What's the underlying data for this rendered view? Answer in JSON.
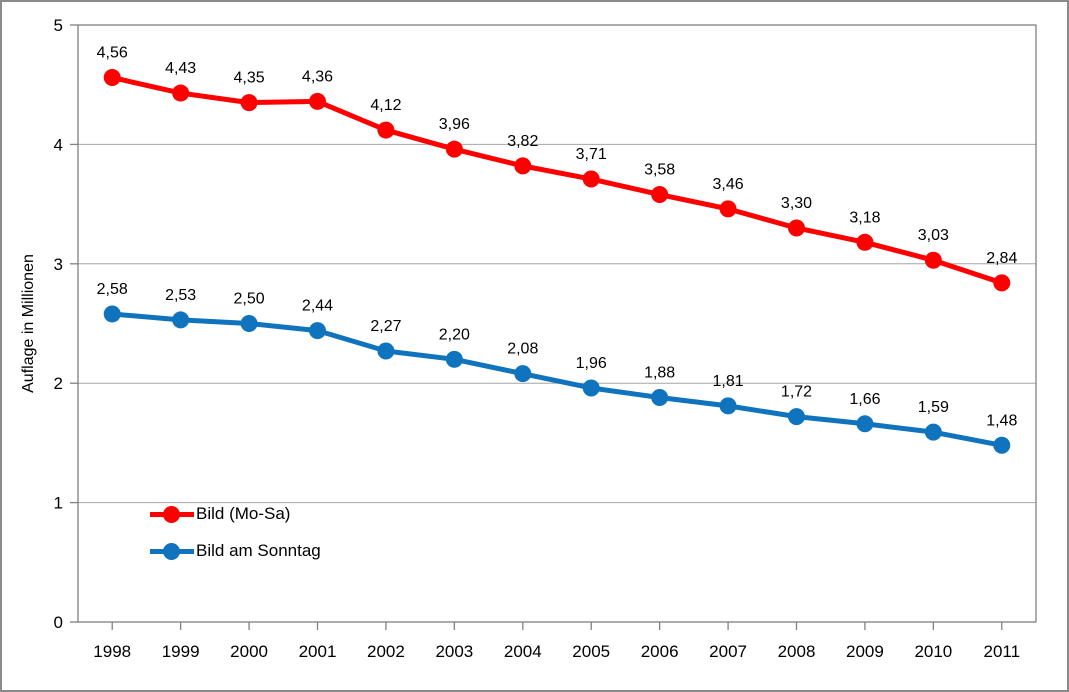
{
  "chart_data": {
    "type": "line",
    "title": "",
    "xlabel": "",
    "ylabel": "Auflage in Millionen",
    "ylim": [
      0,
      5
    ],
    "yticks": [
      "0",
      "1",
      "2",
      "3",
      "4",
      "5"
    ],
    "grid": "horizontal",
    "legend_position": "inside-bottom-left",
    "categories": [
      "1998",
      "1999",
      "2000",
      "2001",
      "2002",
      "2003",
      "2004",
      "2005",
      "2006",
      "2007",
      "2008",
      "2009",
      "2010",
      "2011"
    ],
    "series": [
      {
        "name": "Bild (Mo-Sa)",
        "color": "#FE0000",
        "values": [
          4.56,
          4.43,
          4.35,
          4.36,
          4.12,
          3.96,
          3.82,
          3.71,
          3.58,
          3.46,
          3.3,
          3.18,
          3.03,
          2.84
        ],
        "labels": [
          "4,56",
          "4,43",
          "4,35",
          "4,36",
          "4,12",
          "3,96",
          "3,82",
          "3,71",
          "3,58",
          "3,46",
          "3,30",
          "3,18",
          "3,03",
          "2,84"
        ]
      },
      {
        "name": "Bild am Sonntag",
        "color": "#1073BD",
        "values": [
          2.58,
          2.53,
          2.5,
          2.44,
          2.27,
          2.2,
          2.08,
          1.96,
          1.88,
          1.81,
          1.72,
          1.66,
          1.59,
          1.48
        ],
        "labels": [
          "2,58",
          "2,53",
          "2,50",
          "2,44",
          "2,27",
          "2,20",
          "2,08",
          "1,96",
          "1,88",
          "1,81",
          "1,72",
          "1,66",
          "1,59",
          "1,48"
        ]
      }
    ],
    "style": {
      "axis_color": "#808080",
      "grid_color": "#A6A6A6",
      "text_color": "#000000",
      "outer_border_color": "#8A8A8A",
      "background": "#FFFFFF"
    }
  }
}
